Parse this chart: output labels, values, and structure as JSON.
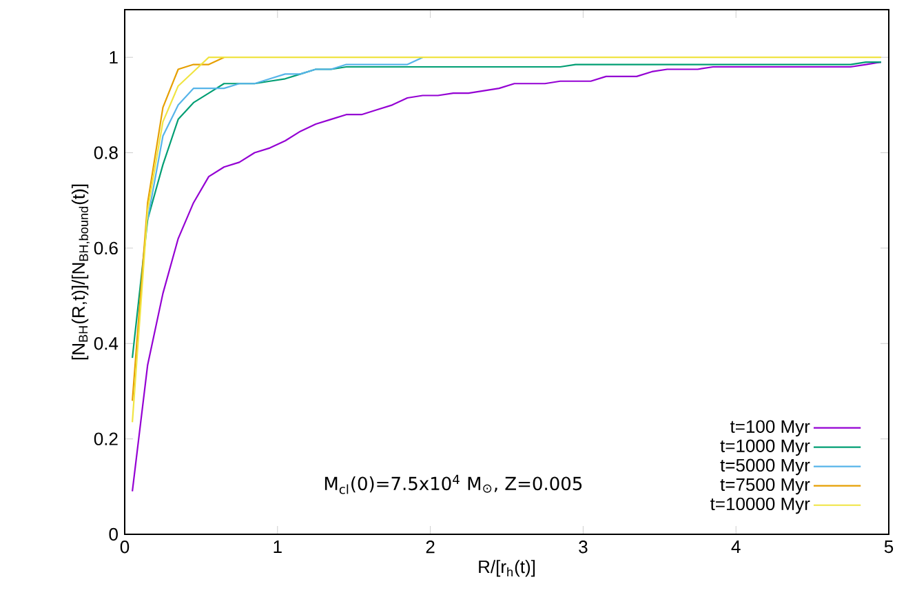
{
  "chart_data": {
    "type": "line",
    "xlabel": "R/[r$_{h}$(t)]",
    "ylabel": "[N$_{BH}$(R,t)]/[N$_{BH,bound}$(t)]",
    "annotations": [
      "M$_{cl}$(0)=7.5x10$^{4}$ M$_{⊙}$, Z=0.005"
    ],
    "x": [
      0.05,
      0.15,
      0.25,
      0.35,
      0.45,
      0.55,
      0.65,
      0.75,
      0.85,
      0.95,
      1.05,
      1.15,
      1.25,
      1.35,
      1.45,
      1.55,
      1.65,
      1.75,
      1.85,
      1.95,
      2.05,
      2.15,
      2.25,
      2.35,
      2.45,
      2.55,
      2.65,
      2.75,
      2.85,
      2.95,
      3.05,
      3.15,
      3.25,
      3.35,
      3.45,
      3.55,
      3.65,
      3.75,
      3.85,
      3.95,
      4.05,
      4.15,
      4.25,
      4.35,
      4.45,
      4.55,
      4.65,
      4.75,
      4.85,
      4.95
    ],
    "series": [
      {
        "name": "t=100 Myr",
        "color": "#9400d3",
        "values": [
          0.09,
          0.355,
          0.505,
          0.62,
          0.695,
          0.75,
          0.77,
          0.78,
          0.8,
          0.81,
          0.825,
          0.845,
          0.86,
          0.87,
          0.88,
          0.88,
          0.89,
          0.9,
          0.915,
          0.92,
          0.92,
          0.925,
          0.925,
          0.93,
          0.935,
          0.945,
          0.945,
          0.945,
          0.95,
          0.95,
          0.95,
          0.96,
          0.96,
          0.96,
          0.97,
          0.975,
          0.975,
          0.975,
          0.98,
          0.98,
          0.98,
          0.98,
          0.98,
          0.98,
          0.98,
          0.98,
          0.98,
          0.98,
          0.985,
          0.99
        ]
      },
      {
        "name": "t=1000 Myr",
        "color": "#009e73",
        "values": [
          0.37,
          0.66,
          0.775,
          0.87,
          0.905,
          0.925,
          0.945,
          0.945,
          0.945,
          0.95,
          0.955,
          0.965,
          0.975,
          0.975,
          0.98,
          0.98,
          0.98,
          0.98,
          0.98,
          0.98,
          0.98,
          0.98,
          0.98,
          0.98,
          0.98,
          0.98,
          0.98,
          0.98,
          0.98,
          0.985,
          0.985,
          0.985,
          0.985,
          0.985,
          0.985,
          0.985,
          0.985,
          0.985,
          0.985,
          0.985,
          0.985,
          0.985,
          0.985,
          0.985,
          0.985,
          0.985,
          0.985,
          0.985,
          0.99,
          0.99
        ]
      },
      {
        "name": "t=5000 Myr",
        "color": "#56b4e9",
        "values": [
          null,
          0.66,
          0.835,
          0.9,
          0.935,
          0.935,
          0.935,
          0.945,
          0.945,
          0.955,
          0.965,
          0.965,
          0.975,
          0.975,
          0.985,
          0.985,
          0.985,
          0.985,
          0.985,
          1,
          null,
          null,
          null,
          null,
          null,
          null,
          null,
          null,
          null,
          null,
          null,
          null,
          null,
          null,
          null,
          null,
          null,
          null,
          null,
          null,
          null,
          null,
          null,
          null,
          null,
          null,
          null,
          null,
          null,
          null
        ]
      },
      {
        "name": "t=7500 Myr",
        "color": "#e69f00",
        "values": [
          0.28,
          0.695,
          0.895,
          0.975,
          0.985,
          0.985,
          1,
          null,
          null,
          null,
          null,
          null,
          null,
          null,
          null,
          null,
          null,
          null,
          null,
          null,
          null,
          null,
          null,
          null,
          null,
          null,
          null,
          null,
          null,
          null,
          null,
          null,
          null,
          null,
          null,
          null,
          null,
          null,
          null,
          null,
          null,
          null,
          null,
          null,
          null,
          null,
          null,
          null,
          null,
          null
        ]
      },
      {
        "name": "t=10000 Myr",
        "color": "#f0e442",
        "values": [
          0.235,
          0.68,
          0.865,
          0.94,
          0.97,
          1,
          1,
          1,
          1,
          1,
          1,
          1,
          1,
          1,
          1,
          1,
          1,
          1,
          1,
          1,
          1,
          1,
          1,
          1,
          1,
          1,
          1,
          1,
          1,
          1,
          1,
          1,
          1,
          1,
          1,
          1,
          1,
          1,
          1,
          1,
          1,
          1,
          1,
          1,
          1,
          1,
          1,
          1,
          1,
          1
        ]
      }
    ],
    "xlim": [
      0,
      5
    ],
    "xticks": [
      0,
      1,
      2,
      3,
      4,
      5
    ],
    "ylim": [
      0,
      1.1
    ],
    "yticks": [
      0,
      0.2,
      0.4,
      0.6,
      0.8,
      1
    ],
    "legend": "bottom right",
    "line_style": "solid"
  }
}
